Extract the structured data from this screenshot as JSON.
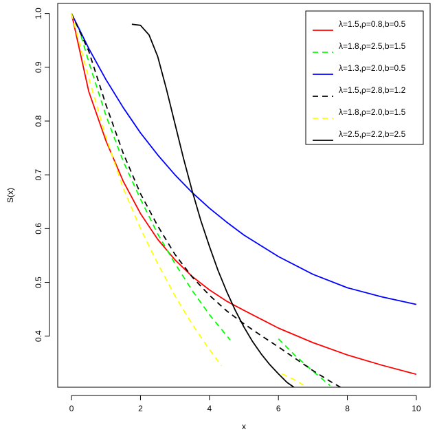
{
  "chart_data": {
    "type": "line",
    "title": "",
    "xlabel": "x",
    "ylabel": "S(x)",
    "xlim": [
      -0.4,
      10.4
    ],
    "ylim": [
      0.305,
      1.0187
    ],
    "xticks": [
      0,
      2,
      4,
      6,
      8,
      10
    ],
    "yticks": [
      0.4,
      0.5,
      0.6,
      0.7,
      0.8,
      0.9,
      1.0
    ],
    "xtick_labels": [
      "0",
      "2",
      "4",
      "6",
      "8",
      "10"
    ],
    "ytick_labels": [
      "0.4",
      "0.5",
      "0.6",
      "0.7",
      "0.8",
      "0.9",
      "1.0"
    ],
    "grid": false,
    "legend_position": "top-right",
    "series": [
      {
        "name": "λ=1.5,ρ=0.8,b=0.5",
        "color": "#ff0000",
        "dash": "solid",
        "x": [
          0,
          0.5,
          1,
          1.5,
          2,
          2.5,
          3,
          3.5,
          4,
          4.5,
          5,
          6,
          7,
          8,
          9,
          10
        ],
        "y": [
          1.0,
          0.855,
          0.763,
          0.688,
          0.628,
          0.58,
          0.542,
          0.511,
          0.486,
          0.465,
          0.448,
          0.415,
          0.388,
          0.365,
          0.346,
          0.329
        ]
      },
      {
        "name": "λ=1.8,ρ=2.5,b=1.5",
        "color": "#00ff00",
        "dash": "dashed",
        "segments": [
          {
            "x": [
              0.2,
              0.5,
              1,
              1.5,
              2,
              2.5,
              3,
              3.5,
              4,
              4.6
            ],
            "y": [
              0.975,
              0.91,
              0.81,
              0.725,
              0.655,
              0.59,
              0.535,
              0.485,
              0.44,
              0.393
            ]
          },
          {
            "x": [
              6.0,
              6.5,
              7.0,
              7.5
            ],
            "y": [
              0.395,
              0.363,
              0.335,
              0.308
            ]
          }
        ]
      },
      {
        "name": "λ=1.3,ρ=2.0,b=0.5",
        "color": "#0000ff",
        "dash": "solid",
        "x": [
          0,
          0.5,
          1,
          1.5,
          2,
          2.5,
          3,
          3.5,
          4,
          4.5,
          5,
          6,
          7,
          8,
          9,
          10
        ],
        "y": [
          1.0,
          0.935,
          0.877,
          0.825,
          0.778,
          0.737,
          0.7,
          0.667,
          0.638,
          0.612,
          0.588,
          0.548,
          0.515,
          0.49,
          0.473,
          0.459
        ]
      },
      {
        "name": "λ=1.5,ρ=2.8,b=1.2",
        "color": "#000000",
        "dash": "dashed",
        "x": [
          0,
          0.5,
          1,
          1.5,
          2,
          2.5,
          3,
          3.5,
          4,
          4.5,
          5,
          5.5,
          6,
          6.5,
          7,
          7.5,
          7.8
        ],
        "y": [
          1.0,
          0.93,
          0.83,
          0.74,
          0.665,
          0.605,
          0.552,
          0.51,
          0.476,
          0.447,
          0.423,
          0.401,
          0.38,
          0.358,
          0.336,
          0.316,
          0.305
        ]
      },
      {
        "name": "λ=1.8,ρ=2.0,b=1.5",
        "color": "#ffff00",
        "dash": "dashed",
        "segments": [
          {
            "x": [
              0,
              0.5,
              1,
              1.5,
              2,
              2.5,
              3,
              3.5,
              4,
              4.35
            ],
            "y": [
              1.0,
              0.88,
              0.77,
              0.675,
              0.6,
              0.535,
              0.475,
              0.422,
              0.375,
              0.345
            ]
          },
          {
            "x": [
              6.1,
              6.5,
              6.8
            ],
            "y": [
              0.33,
              0.318,
              0.306
            ]
          }
        ]
      },
      {
        "name": "λ=2.5,ρ=2.2,b=2.5",
        "color": "#000000",
        "dash": "solid",
        "x": [
          1.75,
          2.0,
          2.25,
          2.5,
          2.75,
          3.0,
          3.25,
          3.5,
          3.75,
          4.0,
          4.25,
          4.5,
          4.75,
          5.0,
          5.25,
          5.5,
          5.75,
          6.0,
          6.25,
          6.45
        ],
        "y": [
          0.98,
          0.978,
          0.96,
          0.92,
          0.86,
          0.795,
          0.73,
          0.67,
          0.615,
          0.567,
          0.522,
          0.483,
          0.448,
          0.417,
          0.39,
          0.367,
          0.347,
          0.33,
          0.314,
          0.305
        ]
      }
    ]
  }
}
